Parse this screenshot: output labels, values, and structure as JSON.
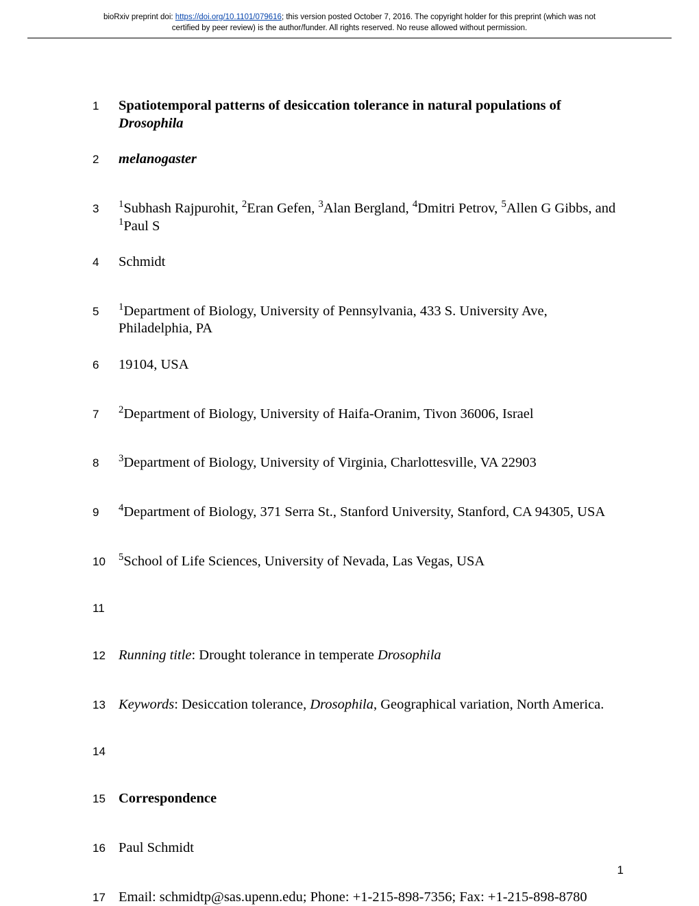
{
  "preprint": {
    "line1_pre": "bioRxiv preprint doi: ",
    "line1_link": "https://doi.org/10.1101/079616",
    "line1_post": "; this version posted October 7, 2016. The copyright holder for this preprint (which was not",
    "line2": "certified by peer review) is the author/funder. All rights reserved. No reuse allowed without permission."
  },
  "lines": {
    "l1": "Spatiotemporal patterns of desiccation tolerance in natural populations of ",
    "l1i": "Drosophila",
    "l2": "melanogaster",
    "l3": "Subhash Rajpurohit, ",
    "l3b": "Eran Gefen, ",
    "l3c": "Alan Bergland, ",
    "l3d": "Dmitri Petrov, ",
    "l3e": "Allen G Gibbs, and ",
    "l3f": "Paul S",
    "l4": "Schmidt",
    "l5": "Department of Biology, University of Pennsylvania, 433 S. University Ave, Philadelphia, PA",
    "l6": "19104, USA",
    "l7": "Department of Biology, University of Haifa-Oranim, Tivon 36006, Israel",
    "l8": "Department of Biology, University of Virginia, Charlottesville, VA 22903",
    "l9": "Department of Biology, 371 Serra St., Stanford University, Stanford, CA 94305, USA",
    "l10": "School of Life Sciences, University of Nevada, Las Vegas, USA",
    "l12a": "Running title",
    "l12b": ": Drought tolerance in temperate ",
    "l12c": "Drosophila",
    "l13a": "Keywords",
    "l13b": ": Desiccation tolerance, ",
    "l13c": "Drosophila",
    "l13d": ", Geographical variation, North America.",
    "l15": "Correspondence",
    "l16": "Paul Schmidt",
    "l17": "Email: schmidtp@sas.upenn.edu; Phone: +1-215-898-7356; Fax: +1-215-898-8780"
  },
  "sup": {
    "s1": "1",
    "s2": "2",
    "s3": "3",
    "s4": "4",
    "s5": "5"
  },
  "nums": {
    "n1": "1",
    "n2": "2",
    "n3": "3",
    "n4": "4",
    "n5": "5",
    "n6": "6",
    "n7": "7",
    "n8": "8",
    "n9": "9",
    "n10": "10",
    "n11": "11",
    "n12": "12",
    "n13": "13",
    "n14": "14",
    "n15": "15",
    "n16": "16",
    "n17": "17"
  },
  "pagenum": "1"
}
